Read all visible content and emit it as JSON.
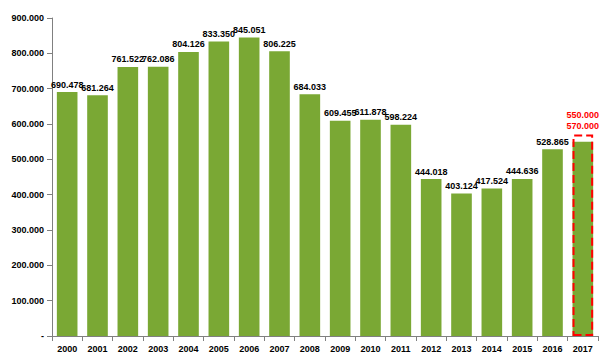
{
  "chart_data": {
    "type": "bar",
    "categories": [
      "2000",
      "2001",
      "2002",
      "2003",
      "2004",
      "2005",
      "2006",
      "2007",
      "2008",
      "2009",
      "2010",
      "2011",
      "2012",
      "2013",
      "2014",
      "2015",
      "2016",
      "2017"
    ],
    "values": [
      690478,
      681264,
      761522,
      762086,
      804126,
      833350,
      845051,
      806225,
      684033,
      609455,
      611878,
      598224,
      444018,
      403124,
      417524,
      444636,
      528865,
      null
    ],
    "value_labels": [
      "690.478",
      "681.264",
      "761.522",
      "762.086",
      "804.126",
      "833.350",
      "845.051",
      "806.225",
      "684.033",
      "609.455",
      "611.878",
      "598.224",
      "444.018",
      "403.124",
      "417.524",
      "444.636",
      "528.865",
      null
    ],
    "color": "#7aa834",
    "data_labels": true,
    "estimate": {
      "category": "2017",
      "low": 550000,
      "high": 570000,
      "low_label": "550.000",
      "high_label": "570.000",
      "color": "#ff0000",
      "line_style": "dashed"
    },
    "ylim": [
      0,
      900000
    ],
    "yticks": [
      {
        "value": 0,
        "label": "-"
      },
      {
        "value": 100000,
        "label": "100.000"
      },
      {
        "value": 200000,
        "label": "200.000"
      },
      {
        "value": 300000,
        "label": "300.000"
      },
      {
        "value": 400000,
        "label": "400.000"
      },
      {
        "value": 500000,
        "label": "500.000"
      },
      {
        "value": 600000,
        "label": "600.000"
      },
      {
        "value": 700000,
        "label": "700.000"
      },
      {
        "value": 800000,
        "label": "800.000"
      },
      {
        "value": 900000,
        "label": "900.000"
      }
    ],
    "grid": false
  }
}
